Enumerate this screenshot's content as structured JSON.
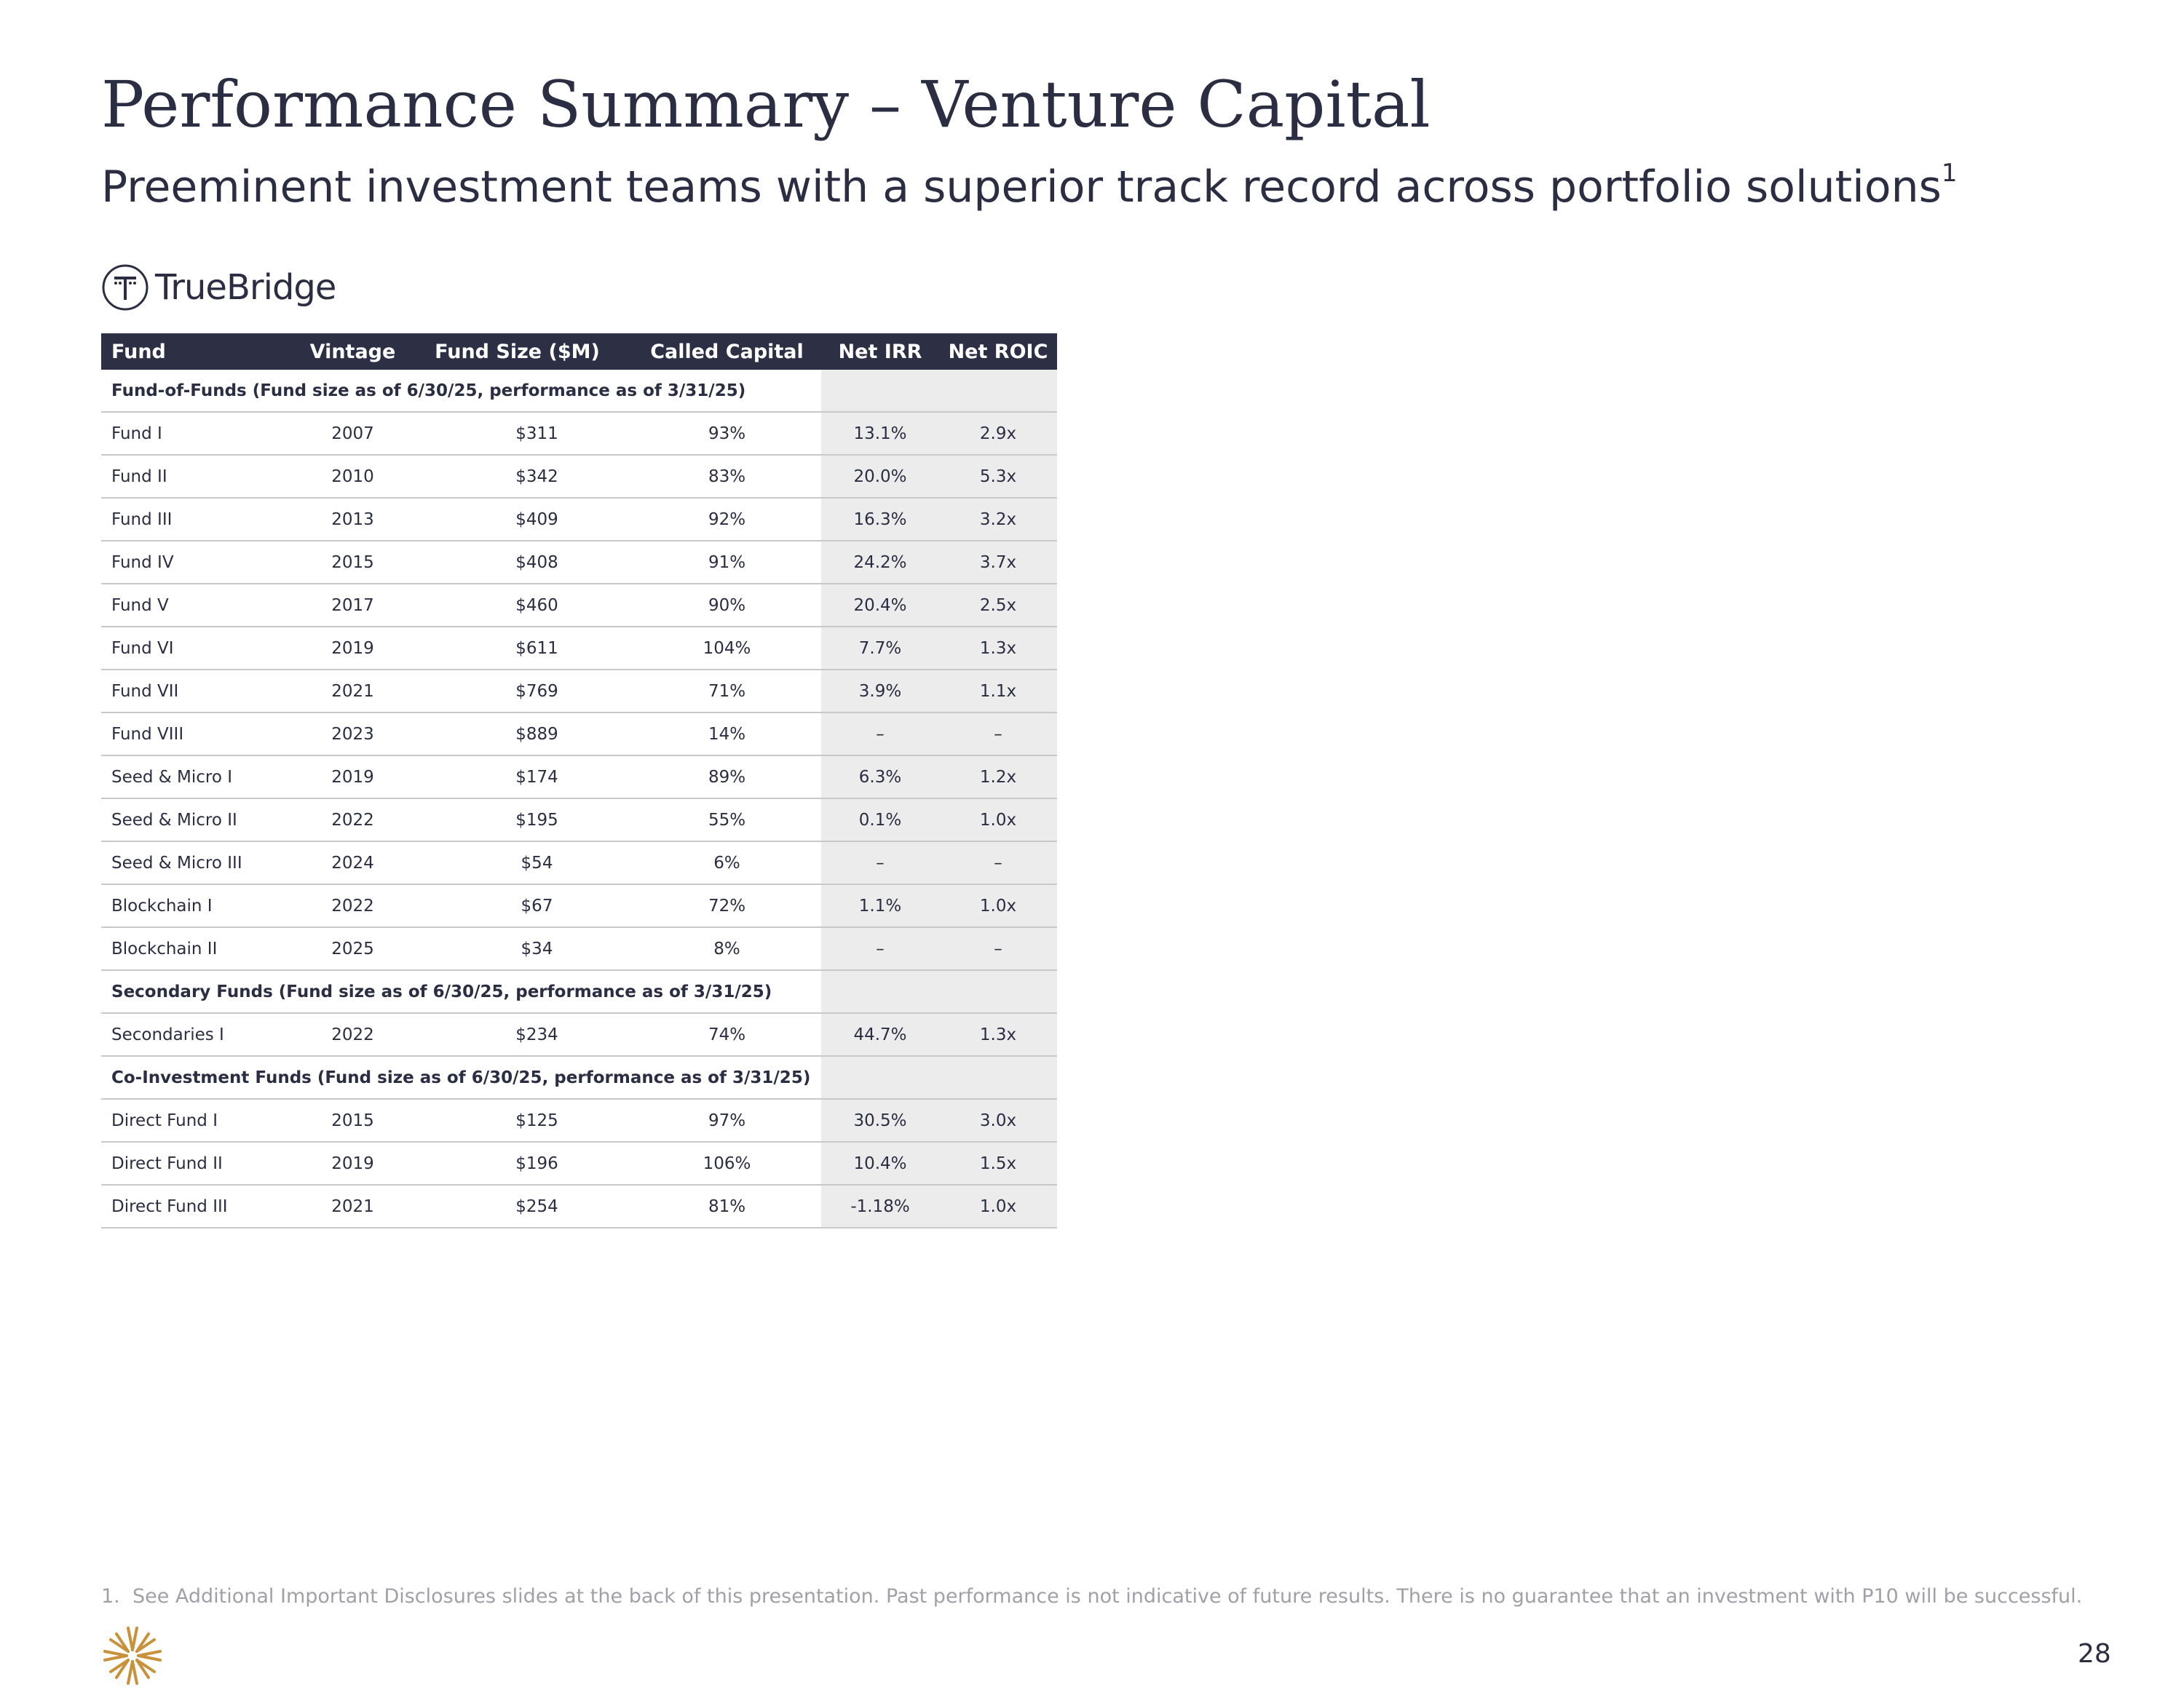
{
  "header": {
    "title": "Performance Summary – Venture Capital",
    "subtitle": "Preeminent investment teams with a superior track record across portfolio solutions",
    "subtitle_note": "1"
  },
  "logo": {
    "text": "TrueBridge"
  },
  "table": {
    "columns": [
      "Fund",
      "Vintage",
      "Fund Size ($M)",
      "Called Capital",
      "Net IRR",
      "Net ROIC"
    ],
    "sections": [
      {
        "title": "Fund-of-Funds (Fund size as of 6/30/25, performance as of 3/31/25)",
        "rows": [
          [
            "Fund I",
            "2007",
            "$311",
            "93%",
            "13.1%",
            "2.9x"
          ],
          [
            "Fund II",
            "2010",
            "$342",
            "83%",
            "20.0%",
            "5.3x"
          ],
          [
            "Fund III",
            "2013",
            "$409",
            "92%",
            "16.3%",
            "3.2x"
          ],
          [
            "Fund IV",
            "2015",
            "$408",
            "91%",
            "24.2%",
            "3.7x"
          ],
          [
            "Fund V",
            "2017",
            "$460",
            "90%",
            "20.4%",
            "2.5x"
          ],
          [
            "Fund VI",
            "2019",
            "$611",
            "104%",
            "7.7%",
            "1.3x"
          ],
          [
            "Fund VII",
            "2021",
            "$769",
            "71%",
            "3.9%",
            "1.1x"
          ],
          [
            "Fund VIII",
            "2023",
            "$889",
            "14%",
            "–",
            "–"
          ],
          [
            "Seed & Micro I",
            "2019",
            "$174",
            "89%",
            "6.3%",
            "1.2x"
          ],
          [
            "Seed & Micro II",
            "2022",
            "$195",
            "55%",
            "0.1%",
            "1.0x"
          ],
          [
            "Seed & Micro III",
            "2024",
            "$54",
            "6%",
            "–",
            "–"
          ],
          [
            "Blockchain I",
            "2022",
            "$67",
            "72%",
            "1.1%",
            "1.0x"
          ],
          [
            "Blockchain II",
            "2025",
            "$34",
            "8%",
            "–",
            "–"
          ]
        ]
      },
      {
        "title": "Secondary Funds (Fund size as of 6/30/25, performance as of 3/31/25)",
        "rows": [
          [
            "Secondaries I",
            "2022",
            "$234",
            "74%",
            "44.7%",
            "1.3x"
          ]
        ]
      },
      {
        "title": "Co-Investment Funds (Fund size as of 6/30/25, performance as of 3/31/25)",
        "rows": [
          [
            "Direct Fund I",
            "2015",
            "$125",
            "97%",
            "30.5%",
            "3.0x"
          ],
          [
            "Direct Fund II",
            "2019",
            "$196",
            "106%",
            "10.4%",
            "1.5x"
          ],
          [
            "Direct Fund III",
            "2021",
            "$254",
            "81%",
            "-1.18%",
            "1.0x"
          ]
        ]
      }
    ]
  },
  "footnote": {
    "number": "1.",
    "text": "See Additional Important Disclosures slides at the back of this presentation. Past performance is not indicative of future results. There is no guarantee that an investment with P10 will be successful."
  },
  "page_number": "28"
}
